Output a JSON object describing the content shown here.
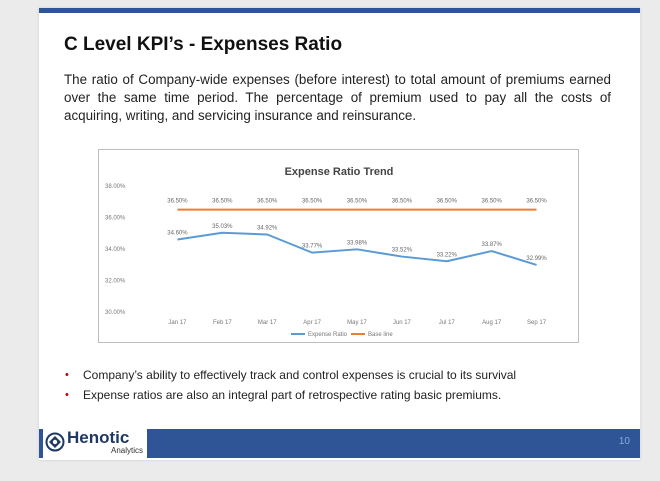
{
  "slide": {
    "title": "C Level KPI’s - Expenses Ratio",
    "description": "The ratio of Company-wide expenses (before interest) to total amount of premiums earned over the same time period. The percentage of premium used to pay all the costs of acquiring, writing, and servicing insurance and reinsurance.",
    "bullets": [
      "Company’s ability to effectively track and control expenses is crucial to its survival",
      "Expense ratios are also an integral part of retrospective rating basic premiums."
    ],
    "page_number": "10"
  },
  "logo": {
    "name": "Henotic",
    "sub": "Analytics"
  },
  "colors": {
    "accent_blue": "#2f5597",
    "expense_line": "#5b9bd5",
    "baseline": "#ed7d31",
    "bullet": "#c00000"
  },
  "chart_data": {
    "type": "line",
    "title": "Expense Ratio Trend",
    "categories": [
      "Jan 17",
      "Feb 17",
      "Mar 17",
      "Apr 17",
      "May 17",
      "Jun 17",
      "Jul 17",
      "Aug 17",
      "Sep 17"
    ],
    "y_tick_labels": [
      "38.00%",
      "36.00%",
      "34.00%",
      "32.00%",
      "30.00%"
    ],
    "ylim": [
      30,
      38
    ],
    "grid": false,
    "legend_position": "bottom",
    "series": [
      {
        "name": "Expense Ratio",
        "values": [
          34.6,
          35.03,
          34.92,
          33.77,
          33.98,
          33.52,
          33.22,
          33.87,
          32.99
        ],
        "labels": [
          "34.60%",
          "35.03%",
          "34.92%",
          "33.77%",
          "33.98%",
          "33.52%",
          "33.22%",
          "33.87%",
          "32.99%"
        ]
      },
      {
        "name": "Base line",
        "values": [
          36.5,
          36.5,
          36.5,
          36.5,
          36.5,
          36.5,
          36.5,
          36.5,
          36.5
        ],
        "labels": [
          "36.50%",
          "36.50%",
          "36.50%",
          "36.50%",
          "36.50%",
          "36.50%",
          "36.50%",
          "36.50%",
          "36.50%"
        ]
      }
    ]
  }
}
